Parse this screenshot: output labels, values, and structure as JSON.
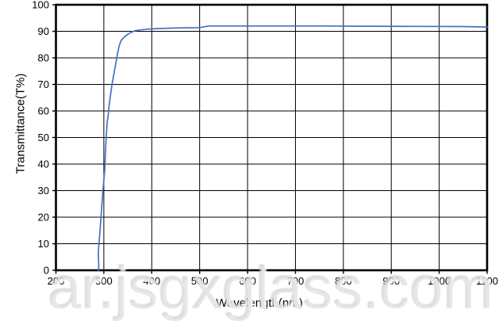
{
  "watermark": "ar.jsgxglass.com",
  "colors": {
    "curve": "#4472c4",
    "gridline": "#000000",
    "axis_border": "#000000",
    "background": "#ffffff",
    "watermark_gray": "#c6c6c6"
  },
  "chart_data": {
    "type": "line",
    "title": "",
    "xlabel": "Wavelength(nm)",
    "ylabel": "Transmittance(T%)",
    "xlim": [
      200,
      1100
    ],
    "ylim": [
      0,
      100
    ],
    "x_ticks": [
      200,
      300,
      400,
      500,
      600,
      700,
      800,
      900,
      1000,
      1100
    ],
    "y_ticks": [
      0,
      10,
      20,
      30,
      40,
      50,
      60,
      70,
      80,
      90,
      100
    ],
    "grid": true,
    "legend": "none",
    "line_color": "#4472c4",
    "series": [
      {
        "name": "Transmittance",
        "points": [
          [
            289,
            0
          ],
          [
            289.5,
            2
          ],
          [
            288.5,
            6
          ],
          [
            289,
            8
          ],
          [
            290,
            10
          ],
          [
            292,
            15
          ],
          [
            294,
            20
          ],
          [
            296,
            25
          ],
          [
            298,
            30
          ],
          [
            300,
            34
          ],
          [
            302,
            38
          ],
          [
            303,
            43
          ],
          [
            304,
            47
          ],
          [
            305,
            50
          ],
          [
            306,
            53
          ],
          [
            307,
            56
          ],
          [
            309,
            58
          ],
          [
            311,
            62
          ],
          [
            314,
            66
          ],
          [
            317,
            70
          ],
          [
            320,
            73
          ],
          [
            324,
            77
          ],
          [
            328,
            81
          ],
          [
            332,
            84.5
          ],
          [
            336,
            86.5
          ],
          [
            340,
            87.3
          ],
          [
            345,
            88.2
          ],
          [
            351,
            89
          ],
          [
            357,
            89.6
          ],
          [
            365,
            90.2
          ],
          [
            375,
            90.5
          ],
          [
            390,
            90.8
          ],
          [
            410,
            91
          ],
          [
            440,
            91.2
          ],
          [
            470,
            91.3
          ],
          [
            500,
            91.4
          ],
          [
            510,
            91.7
          ],
          [
            518,
            92
          ],
          [
            560,
            92
          ],
          [
            650,
            92
          ],
          [
            750,
            92
          ],
          [
            850,
            91.9
          ],
          [
            950,
            91.85
          ],
          [
            1050,
            91.8
          ],
          [
            1100,
            91.6
          ]
        ]
      }
    ]
  }
}
